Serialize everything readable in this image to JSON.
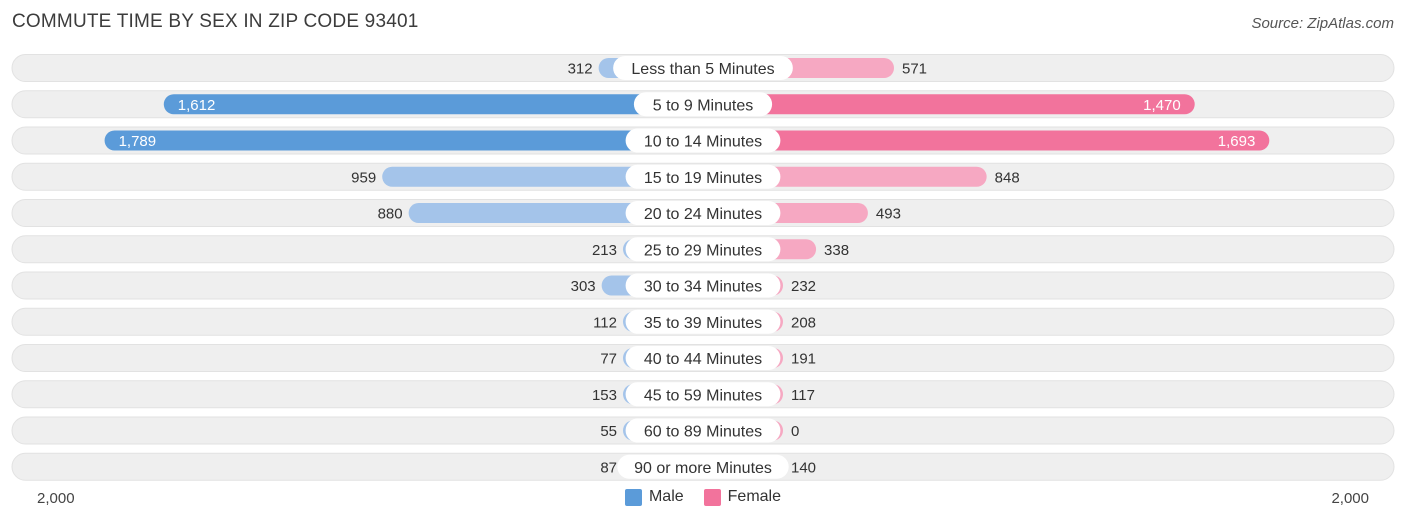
{
  "title": "COMMUTE TIME BY SEX IN ZIP CODE 93401",
  "source": "Source: ZipAtlas.com",
  "colors": {
    "male_dark": "#5b9bd9",
    "male_light": "#a4c4ea",
    "female_dark": "#f2739c",
    "female_light": "#f6a8c2",
    "row_bg": "#efefef"
  },
  "chart_data": {
    "type": "bar",
    "orientation": "horizontal-diverging",
    "categories": [
      "Less than 5 Minutes",
      "5 to 9 Minutes",
      "10 to 14 Minutes",
      "15 to 19 Minutes",
      "20 to 24 Minutes",
      "25 to 29 Minutes",
      "30 to 34 Minutes",
      "35 to 39 Minutes",
      "40 to 44 Minutes",
      "45 to 59 Minutes",
      "60 to 89 Minutes",
      "90 or more Minutes"
    ],
    "series": [
      {
        "name": "Male",
        "values": [
          312,
          1612,
          1789,
          959,
          880,
          213,
          303,
          112,
          77,
          153,
          55,
          87
        ]
      },
      {
        "name": "Female",
        "values": [
          571,
          1470,
          1693,
          848,
          493,
          338,
          232,
          208,
          191,
          117,
          0,
          140
        ]
      }
    ],
    "value_labels": {
      "male": [
        "312",
        "1,612",
        "1,789",
        "959",
        "880",
        "213",
        "303",
        "112",
        "77",
        "153",
        "55",
        "87"
      ],
      "female": [
        "571",
        "1,470",
        "1,693",
        "848",
        "493",
        "338",
        "232",
        "208",
        "191",
        "117",
        "0",
        "140"
      ]
    },
    "xlim": [
      -2000,
      2000
    ],
    "axis_tick_left": "2,000",
    "axis_tick_right": "2,000",
    "legend_placement": "bottom-center"
  }
}
